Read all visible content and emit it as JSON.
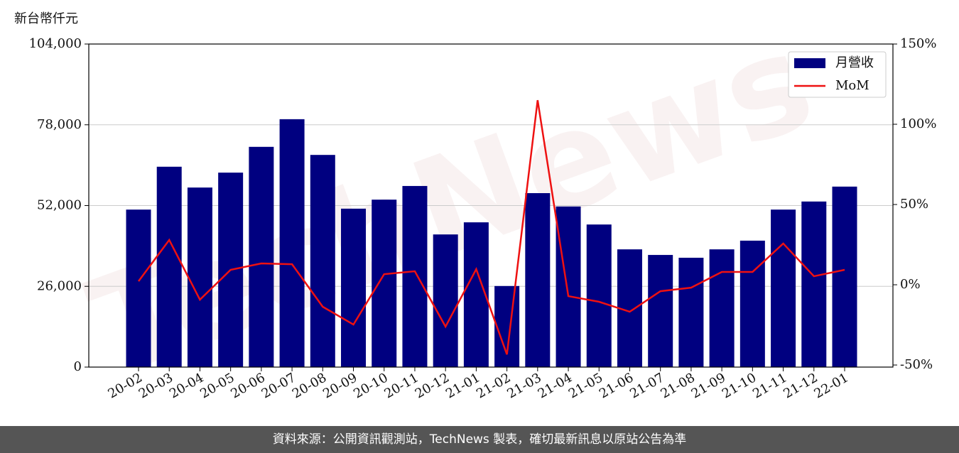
{
  "chart_data": {
    "type": "bar",
    "y_label": "新台幣仟元",
    "footer": "資料來源：公開資訊觀測站，TechNews 製表，確切最新訊息以原站公告為準",
    "watermark": "TechNews",
    "categories": [
      "20-02",
      "20-03",
      "20-04",
      "20-05",
      "20-06",
      "20-07",
      "20-08",
      "20-09",
      "20-10",
      "20-11",
      "20-12",
      "21-01",
      "21-02",
      "21-03",
      "21-04",
      "21-05",
      "21-06",
      "21-07",
      "21-08",
      "21-09",
      "21-10",
      "21-11",
      "21-12",
      "22-01"
    ],
    "series": [
      {
        "name": "月營收",
        "type": "bar",
        "color": "#000080",
        "values": [
          50700,
          64500,
          57800,
          62600,
          70900,
          79800,
          68300,
          51000,
          53900,
          58300,
          42700,
          46600,
          26100,
          56000,
          51700,
          45900,
          37900,
          36100,
          35200,
          37900,
          40700,
          50700,
          53300,
          58100
        ]
      },
      {
        "name": "MoM",
        "type": "line",
        "axis": "y2",
        "color": "#ee1111",
        "values": [
          2.2,
          27.9,
          -9.3,
          9.3,
          13.3,
          12.8,
          -13.7,
          -24.8,
          6.6,
          8.4,
          -26.1,
          9.7,
          -43.4,
          115,
          -7.1,
          -10.6,
          -16.8,
          -4.0,
          -1.8,
          8.0,
          8.0,
          25.7,
          5.3,
          9.3
        ]
      }
    ],
    "ylim": [
      0,
      104000
    ],
    "yticks": [
      0,
      {
        "value": 26000,
        "label": "26,000"
      },
      {
        "value": 52000,
        "label": "52,000"
      },
      {
        "value": 78000,
        "label": "78,000"
      },
      {
        "value": 104000,
        "label": "104,000"
      }
    ],
    "y2lim": [
      -51.3,
      150
    ],
    "y2ticks": [
      {
        "value": -50,
        "label": "-50%"
      },
      {
        "value": 0,
        "label": "0%"
      },
      {
        "value": 50,
        "label": "50%"
      },
      {
        "value": 100,
        "label": "100%"
      },
      {
        "value": 150,
        "label": "150%"
      }
    ],
    "grid": true,
    "legend": "upper right"
  }
}
